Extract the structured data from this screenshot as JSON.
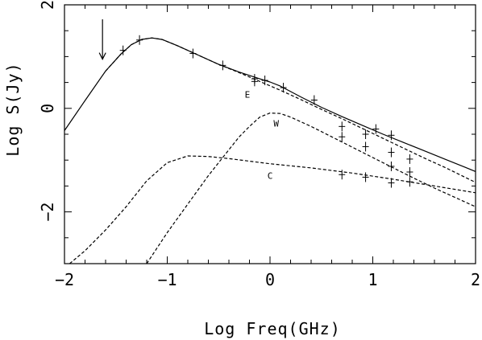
{
  "chart_data": {
    "type": "line",
    "title": "",
    "xlabel": "Log Freq(GHz)",
    "ylabel": "Log S(Jy)",
    "xlim": [
      -2,
      2
    ],
    "ylim": [
      -3,
      2
    ],
    "x_ticks": [
      -2,
      -1,
      0,
      1,
      2
    ],
    "y_ticks": [
      -2,
      0,
      2
    ],
    "x_tick_labels": [
      "−2",
      "−1",
      "0",
      "1",
      "2"
    ],
    "y_tick_labels": [
      "−2",
      "0",
      "2"
    ],
    "grid": false,
    "legend": "none",
    "series": [
      {
        "style": "solid",
        "x": [
          -2.0,
          -1.8,
          -1.6,
          -1.45,
          -1.35,
          -1.25,
          -1.15,
          -1.05,
          -0.9,
          -0.7,
          -0.5,
          -0.3,
          -0.1,
          0.0,
          0.1,
          0.3,
          0.5,
          0.7,
          0.9,
          1.1,
          1.3,
          1.5,
          1.7,
          1.9,
          2.0
        ],
        "y": [
          -0.43,
          0.15,
          0.72,
          1.05,
          1.23,
          1.33,
          1.36,
          1.33,
          1.21,
          1.03,
          0.85,
          0.7,
          0.57,
          0.51,
          0.43,
          0.22,
          0.02,
          -0.16,
          -0.33,
          -0.5,
          -0.66,
          -0.82,
          -0.98,
          -1.14,
          -1.22
        ]
      },
      {
        "label": "E",
        "style": "dashed",
        "x": [
          -1.6,
          -1.45,
          -1.35,
          -1.25,
          -1.15,
          -1.05,
          -0.9,
          -0.7,
          -0.5,
          -0.3,
          -0.1,
          0.1,
          0.3,
          0.5,
          0.7,
          0.9,
          1.1,
          1.3,
          1.5,
          1.7,
          2.0
        ],
        "y": [
          0.72,
          1.05,
          1.23,
          1.33,
          1.36,
          1.33,
          1.21,
          1.03,
          0.85,
          0.69,
          0.52,
          0.35,
          0.17,
          -0.02,
          -0.2,
          -0.39,
          -0.58,
          -0.77,
          -0.96,
          -1.14,
          -1.43
        ]
      },
      {
        "label": "W",
        "style": "dashed",
        "x": [
          -1.2,
          -1.0,
          -0.8,
          -0.6,
          -0.4,
          -0.3,
          -0.2,
          -0.1,
          0.0,
          0.1,
          0.2,
          0.4,
          0.6,
          0.8,
          1.0,
          1.2,
          1.4,
          1.6,
          1.8,
          2.0
        ],
        "y": [
          -3.0,
          -2.4,
          -1.85,
          -1.3,
          -0.8,
          -0.55,
          -0.35,
          -0.17,
          -0.09,
          -0.1,
          -0.17,
          -0.35,
          -0.55,
          -0.75,
          -0.95,
          -1.15,
          -1.35,
          -1.54,
          -1.72,
          -1.9
        ]
      },
      {
        "label": "C",
        "style": "dashed",
        "x": [
          -1.95,
          -1.8,
          -1.6,
          -1.4,
          -1.2,
          -1.0,
          -0.8,
          -0.6,
          -0.4,
          -0.2,
          0.0,
          0.4,
          0.8,
          1.2,
          1.6,
          2.0
        ],
        "y": [
          -3.0,
          -2.75,
          -2.35,
          -1.9,
          -1.4,
          -1.05,
          -0.92,
          -0.93,
          -0.97,
          -1.02,
          -1.07,
          -1.15,
          -1.25,
          -1.37,
          -1.5,
          -1.63
        ]
      }
    ],
    "data_points": [
      {
        "x": -1.43,
        "y": 1.12
      },
      {
        "x": -1.27,
        "y": 1.32
      },
      {
        "x": -0.75,
        "y": 1.06
      },
      {
        "x": -0.46,
        "y": 0.83
      },
      {
        "x": -0.15,
        "y": 0.57
      },
      {
        "x": -0.15,
        "y": 0.52
      },
      {
        "x": -0.05,
        "y": 0.54
      },
      {
        "x": 0.13,
        "y": 0.4
      },
      {
        "x": 0.43,
        "y": 0.16
      },
      {
        "x": 0.7,
        "y": -0.35
      },
      {
        "x": 0.7,
        "y": -0.55
      },
      {
        "x": 0.7,
        "y": -1.28
      },
      {
        "x": 0.93,
        "y": -0.5
      },
      {
        "x": 0.93,
        "y": -0.74
      },
      {
        "x": 0.93,
        "y": -1.33
      },
      {
        "x": 1.03,
        "y": -0.4
      },
      {
        "x": 1.18,
        "y": -0.52
      },
      {
        "x": 1.18,
        "y": -0.85
      },
      {
        "x": 1.18,
        "y": -1.12
      },
      {
        "x": 1.18,
        "y": -1.44
      },
      {
        "x": 1.36,
        "y": -0.98
      },
      {
        "x": 1.36,
        "y": -1.23
      },
      {
        "x": 1.36,
        "y": -1.42
      }
    ],
    "arrow": {
      "x": -1.63,
      "y_from": 1.72,
      "y_to": 0.95
    },
    "curve_labels": [
      {
        "text": "E",
        "x": -0.22,
        "y": 0.27
      },
      {
        "text": "W",
        "x": 0.06,
        "y": -0.29
      },
      {
        "text": "C",
        "x": 0.0,
        "y": -1.3
      }
    ]
  }
}
